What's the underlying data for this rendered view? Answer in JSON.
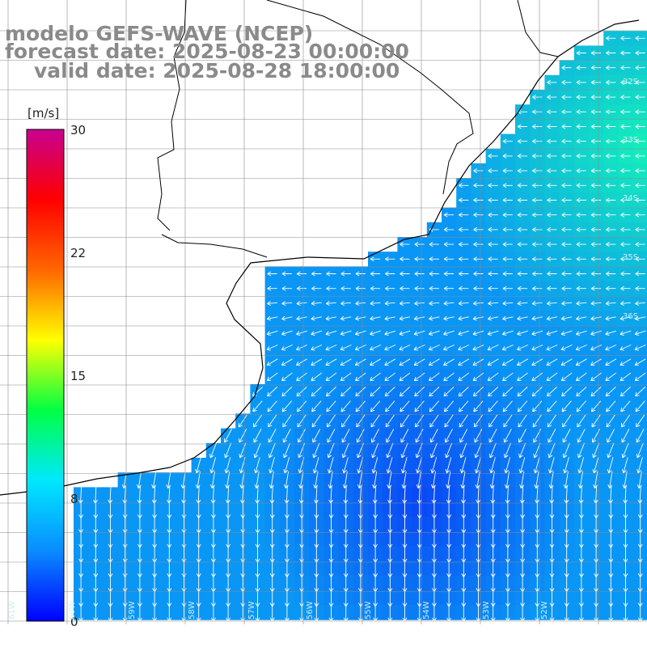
{
  "title": {
    "line1": "modelo GEFS-WAVE (NCEP)",
    "line2": "forecast date: 2025-08-23 00:00:00",
    "line3": "valid date: 2025-08-28 18:00:00"
  },
  "colorbar": {
    "unit": "[m/s]",
    "ticks": [
      "30",
      "22",
      "15",
      "8",
      "0"
    ],
    "tick_values": [
      30,
      22,
      15,
      8,
      0
    ],
    "range": [
      0,
      30
    ],
    "colors": [
      "#0000ff",
      "#0a8cff",
      "#00e8ff",
      "#00ff44",
      "#ffff00",
      "#ff6600",
      "#ff0000",
      "#c80090"
    ]
  },
  "grid": {
    "lat_labels": [
      "32S",
      "33S",
      "34S",
      "35S",
      "36S"
    ],
    "lon_labels": [
      "61W",
      "60W",
      "59W",
      "58W",
      "57W",
      "56W",
      "55W",
      "54W",
      "53W",
      "52W"
    ]
  },
  "colors": {
    "land": "#ffffff",
    "coast": "#000000",
    "grid": "#8c8c8c",
    "arrow": "#ffffff",
    "title": "#8a8a8a"
  }
}
